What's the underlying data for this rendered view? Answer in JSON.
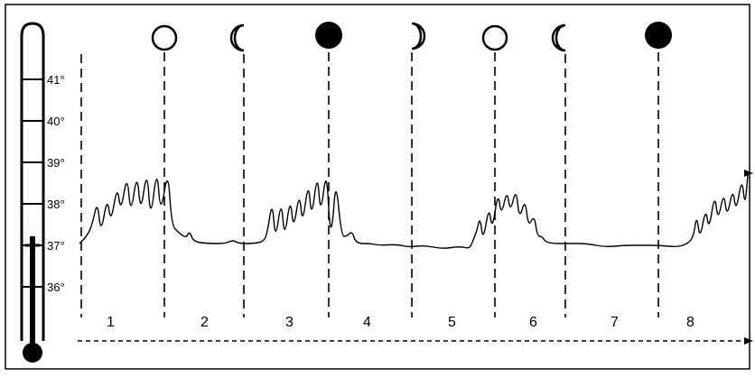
{
  "thermometer": {
    "scale_labels": [
      "41°",
      "40°",
      "39°",
      "38°",
      "37°",
      "36°"
    ]
  },
  "moon_phases": [
    {
      "phase": "full-moon",
      "icon": "full-moon-icon"
    },
    {
      "phase": "waning-crescent",
      "icon": "crescent-moon-icon"
    },
    {
      "phase": "new-moon",
      "icon": "new-moon-icon"
    },
    {
      "phase": "waxing-crescent",
      "icon": "crescent-moon-icon"
    },
    {
      "phase": "full-moon",
      "icon": "full-moon-icon"
    },
    {
      "phase": "waning-crescent",
      "icon": "crescent-moon-icon"
    },
    {
      "phase": "new-moon",
      "icon": "new-moon-icon"
    }
  ],
  "period_labels": [
    "1",
    "2",
    "3",
    "4",
    "5",
    "6",
    "7",
    "8"
  ],
  "colors": {
    "ink": "#000000",
    "background": "#ffffff"
  }
}
